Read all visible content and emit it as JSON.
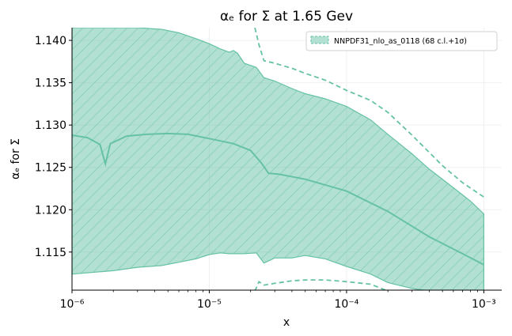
{
  "chart_data": {
    "type": "area",
    "title": "αₑ for Σ at 1.65 Gev",
    "xlabel": "x",
    "ylabel": "αₑ for Σ",
    "xscale": "log",
    "xlim": [
      1e-06,
      0.00135
    ],
    "ylim": [
      1.1105,
      1.1415
    ],
    "grid": "faint",
    "legend_position": "top-right",
    "color": "#66c2a5",
    "x_ticks": [
      {
        "value": 1e-06,
        "label": "10⁻⁶"
      },
      {
        "value": 1e-05,
        "label": "10⁻⁵"
      },
      {
        "value": 0.0001,
        "label": "10⁻⁴"
      },
      {
        "value": 0.001,
        "label": "10⁻³"
      }
    ],
    "y_ticks": [
      {
        "value": 1.115,
        "label": "1.115"
      },
      {
        "value": 1.12,
        "label": "1.120"
      },
      {
        "value": 1.125,
        "label": "1.125"
      },
      {
        "value": 1.13,
        "label": "1.130"
      },
      {
        "value": 1.135,
        "label": "1.135"
      },
      {
        "value": 1.14,
        "label": "1.140"
      }
    ],
    "series": [
      {
        "name": "NNPDF31_nlo_as_0118 (68 c.l.+1σ)",
        "central": {
          "x": [
            1e-06,
            1.3e-06,
            1.6e-06,
            1.75e-06,
            1.9e-06,
            2.5e-06,
            3.5e-06,
            5e-06,
            7e-06,
            1e-05,
            1.5e-05,
            2e-05,
            2.4e-05,
            2.7e-05,
            3.2e-05,
            5e-05,
            0.0001,
            0.0002,
            0.0004,
            0.0007,
            0.001
          ],
          "y": [
            1.1288,
            1.1285,
            1.1277,
            1.1254,
            1.1278,
            1.1287,
            1.1289,
            1.129,
            1.1289,
            1.1284,
            1.1278,
            1.127,
            1.1255,
            1.1243,
            1.1242,
            1.1236,
            1.1222,
            1.1198,
            1.1168,
            1.1148,
            1.1135
          ]
        },
        "band_68": {
          "x": [
            1e-06,
            2e-06,
            3e-06,
            4.5e-06,
            6e-06,
            8e-06,
            1e-05,
            1.2e-05,
            1.4e-05,
            1.5e-05,
            1.6e-05,
            1.8e-05,
            2.2e-05,
            2.5e-05,
            3e-05,
            4e-05,
            5e-05,
            7e-05,
            0.0001,
            0.00015,
            0.0002,
            0.0003,
            0.0004,
            0.0006,
            0.0008,
            0.001
          ],
          "upper": [
            1.1415,
            1.1415,
            1.1415,
            1.1413,
            1.1409,
            1.1402,
            1.1396,
            1.139,
            1.1386,
            1.1388,
            1.1385,
            1.1373,
            1.1368,
            1.1356,
            1.1352,
            1.1343,
            1.1337,
            1.1331,
            1.1322,
            1.1306,
            1.1289,
            1.1266,
            1.1248,
            1.1226,
            1.121,
            1.1195
          ],
          "lower": [
            1.1124,
            1.1128,
            1.1132,
            1.1134,
            1.1138,
            1.1142,
            1.1147,
            1.1149,
            1.1148,
            1.1148,
            1.1148,
            1.1148,
            1.1149,
            1.1137,
            1.1143,
            1.1143,
            1.1146,
            1.1142,
            1.1133,
            1.1124,
            1.1114,
            1.1107,
            1.1104,
            1.1104,
            1.1104,
            1.1104
          ]
        },
        "band_1sigma": {
          "x": [
            2.15e-05,
            2.3e-05,
            2.5e-05,
            3e-05,
            4e-05,
            5e-05,
            7e-05,
            0.0001,
            0.00015,
            0.0002,
            0.0003,
            0.0005,
            0.0007,
            0.001
          ],
          "upper": [
            1.1415,
            1.1395,
            1.1376,
            1.1373,
            1.1367,
            1.1361,
            1.1353,
            1.1341,
            1.1329,
            1.1315,
            1.1288,
            1.1252,
            1.1232,
            1.1215
          ],
          "lower": [
            1.1104,
            1.1115,
            1.1111,
            1.1113,
            1.1116,
            1.1117,
            1.1117,
            1.1115,
            1.1112,
            1.1104,
            1.1104,
            1.1104,
            1.1104,
            1.1104
          ]
        }
      }
    ]
  }
}
